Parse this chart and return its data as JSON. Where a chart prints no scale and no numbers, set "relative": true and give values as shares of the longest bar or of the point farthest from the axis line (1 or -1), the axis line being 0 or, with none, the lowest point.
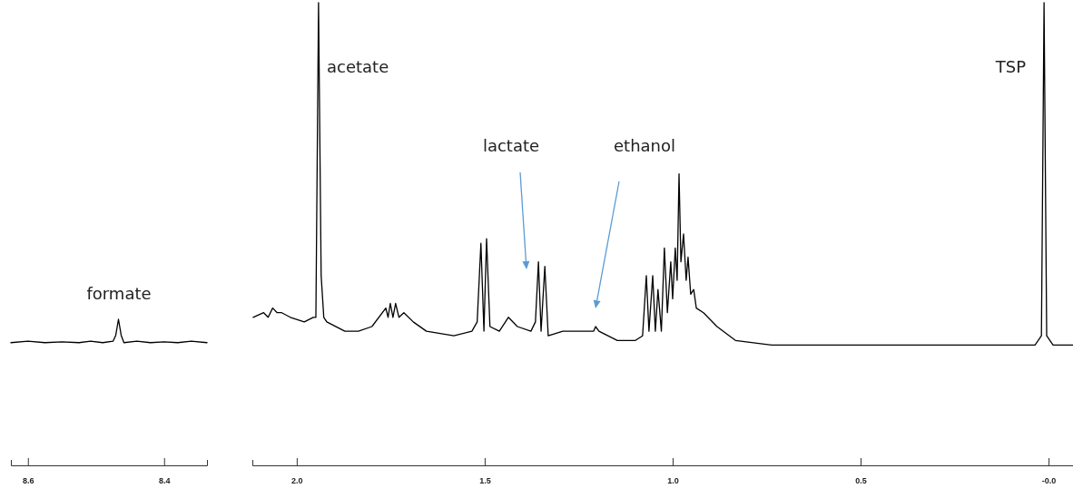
{
  "chart_data": [
    {
      "type": "line",
      "relative": true,
      "tick_labels": "x",
      "grid": false,
      "marker": "none",
      "line_style": "solid",
      "xlim": [
        8.625,
        8.337
      ],
      "xticks": [
        8.6,
        8.4
      ],
      "series": [
        {
          "color": "#000000",
          "x": [
            8.625,
            8.6,
            8.575,
            8.55,
            8.525,
            8.508,
            8.49,
            8.475,
            8.471,
            8.467,
            8.463,
            8.459,
            8.44,
            8.42,
            8.4,
            8.38,
            8.36,
            8.337
          ],
          "values": [
            0.84,
            0.85,
            0.84,
            0.845,
            0.84,
            0.85,
            0.84,
            0.85,
            0.89,
            1,
            0.89,
            0.84,
            0.85,
            0.84,
            0.845,
            0.84,
            0.85,
            0.84
          ]
        }
      ],
      "annotations": [
        "formate"
      ]
    },
    {
      "type": "line",
      "relative": true,
      "tick_labels": "x",
      "grid": false,
      "marker": "none",
      "line_style": "solid",
      "xlim": [
        2.118,
        -0.065
      ],
      "xticks": [
        {
          "value": 2.0,
          "label": "2.0"
        },
        1.5,
        {
          "value": 1.0,
          "label": "1.0"
        },
        0.5,
        {
          "value": 0.0,
          "label": "-0.0"
        }
      ],
      "series": [
        {
          "color": "#000000",
          "x": [
            2.116,
            2.088,
            2.076,
            2.064,
            2.052,
            2.04,
            2.017,
            1.98,
            1.956,
            1.949,
            1.942,
            1.935,
            1.928,
            1.92,
            1.872,
            1.836,
            1.8,
            1.763,
            1.757,
            1.751,
            1.744,
            1.737,
            1.728,
            1.715,
            1.69,
            1.655,
            1.582,
            1.534,
            1.52,
            1.51,
            1.502,
            1.495,
            1.486,
            1.461,
            1.437,
            1.413,
            1.377,
            1.365,
            1.357,
            1.35,
            1.34,
            1.331,
            1.292,
            1.244,
            1.21,
            1.205,
            1.196,
            1.147,
            1.099,
            1.08,
            1.07,
            1.063,
            1.053,
            1.046,
            1.039,
            1.03,
            1.022,
            1.014,
            1.005,
            1.0,
            0.993,
            0.988,
            0.983,
            0.978,
            0.971,
            0.964,
            0.959,
            0.952,
            0.944,
            0.937,
            0.918,
            0.882,
            0.833,
            0.737,
            0.6,
            0.495,
            0.37,
            0.254,
            0.12,
            0.036,
            0.019,
            0.012,
            0.005,
            -0.012,
            -0.04,
            -0.065
          ],
          "values": [
            0.32,
            0.33,
            0.32,
            0.34,
            0.33,
            0.33,
            0.32,
            0.31,
            0.32,
            0.32,
            1,
            0.41,
            0.32,
            0.31,
            0.29,
            0.29,
            0.3,
            0.34,
            0.32,
            0.35,
            0.32,
            0.35,
            0.32,
            0.33,
            0.31,
            0.29,
            0.28,
            0.29,
            0.31,
            0.48,
            0.29,
            0.49,
            0.3,
            0.29,
            0.32,
            0.3,
            0.29,
            0.31,
            0.44,
            0.29,
            0.43,
            0.28,
            0.29,
            0.29,
            0.29,
            0.3,
            0.29,
            0.27,
            0.27,
            0.28,
            0.41,
            0.29,
            0.41,
            0.29,
            0.38,
            0.29,
            0.47,
            0.33,
            0.44,
            0.36,
            0.47,
            0.4,
            0.63,
            0.44,
            0.5,
            0.4,
            0.45,
            0.37,
            0.38,
            0.34,
            0.33,
            0.3,
            0.27,
            0.26,
            0.26,
            0.26,
            0.26,
            0.26,
            0.26,
            0.26,
            0.28,
            1,
            0.28,
            0.26,
            0.26,
            0.26
          ]
        }
      ],
      "annotations": [
        "acetate",
        "lactate",
        "ethanol",
        "TSP"
      ]
    }
  ]
}
